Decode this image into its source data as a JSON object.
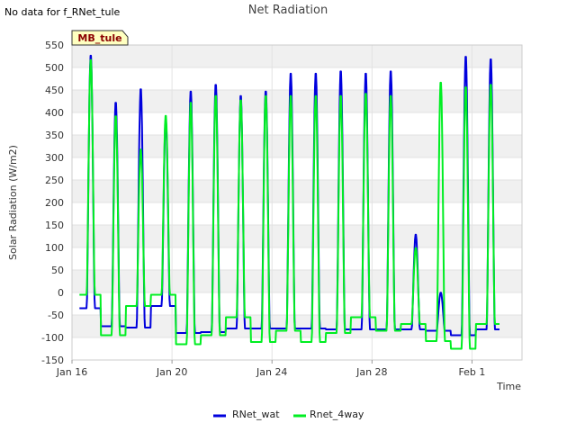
{
  "no_data_note": "No data for f_RNet_tule",
  "chart_data": {
    "type": "line",
    "title": "Net Radiation",
    "xlabel": "Time",
    "ylabel": "Solar Radiation (W/m2)",
    "site_badge": "MB_tule",
    "ylim": [
      -150,
      550
    ],
    "y_ticks": [
      -150,
      -100,
      -50,
      0,
      50,
      100,
      150,
      200,
      250,
      300,
      350,
      400,
      450,
      500,
      550
    ],
    "xlim_days": [
      0,
      18
    ],
    "x_ticks": [
      {
        "label": "Jan 16",
        "day": 0
      },
      {
        "label": "Jan 20",
        "day": 4
      },
      {
        "label": "Jan 24",
        "day": 8
      },
      {
        "label": "Jan 28",
        "day": 12
      },
      {
        "label": "Feb 1",
        "day": 16
      }
    ],
    "legend_position": "bottom-center",
    "series": [
      {
        "name": "RNet_wat",
        "color": "#0000dd",
        "day_starts": [
          0.3
        ],
        "day_ends": [
          17.1
        ],
        "daily_peaks": [
          530,
          425,
          455,
          385,
          450,
          465,
          440,
          450,
          490,
          490,
          495,
          490,
          495,
          130,
          0,
          528,
          522
        ],
        "night_values": [
          -35,
          -75,
          -78,
          -30,
          -90,
          -88,
          -80,
          -80,
          -80,
          -80,
          -82,
          -82,
          -82,
          -82,
          -85,
          -95,
          -82
        ]
      },
      {
        "name": "Rnet_4way",
        "color": "#00ee22",
        "day_starts": [
          0.3
        ],
        "day_ends": [
          17.1
        ],
        "daily_peaks": [
          520,
          395,
          320,
          395,
          425,
          440,
          430,
          440,
          440,
          440,
          440,
          445,
          440,
          100,
          470,
          460,
          465
        ],
        "night_values": [
          -5,
          -95,
          -30,
          -5,
          -115,
          -95,
          -55,
          -110,
          -85,
          -110,
          -90,
          -55,
          -85,
          -70,
          -108,
          -125,
          -70
        ]
      }
    ]
  }
}
